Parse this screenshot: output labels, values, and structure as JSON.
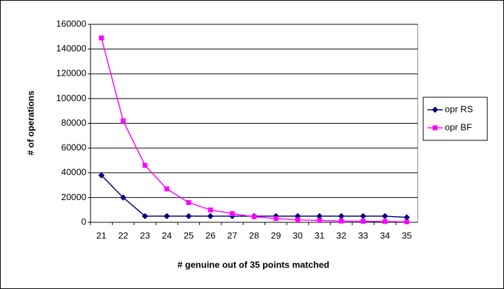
{
  "chart_data": {
    "type": "line",
    "xlabel": "# genuine out of 35 points matched",
    "ylabel": "# of operations",
    "categories": [
      "21",
      "22",
      "23",
      "24",
      "25",
      "26",
      "27",
      "28",
      "29",
      "30",
      "31",
      "32",
      "33",
      "34",
      "35"
    ],
    "series": [
      {
        "name": "opr RS",
        "color": "#000080",
        "marker": "diamond",
        "values": [
          38000,
          20000,
          5000,
          5000,
          5000,
          5000,
          5000,
          5000,
          5000,
          5000,
          5000,
          5000,
          5000,
          5000,
          4000
        ]
      },
      {
        "name": "opr BF",
        "color": "#ff00ff",
        "marker": "square",
        "values": [
          149000,
          82000,
          46000,
          27000,
          16000,
          10000,
          7000,
          4500,
          3000,
          2000,
          1500,
          1000,
          800,
          600,
          400
        ]
      }
    ],
    "ylim": [
      0,
      160000
    ],
    "yticks": [
      0,
      20000,
      40000,
      60000,
      80000,
      100000,
      120000,
      140000,
      160000
    ],
    "grid": true,
    "legend": "right"
  }
}
